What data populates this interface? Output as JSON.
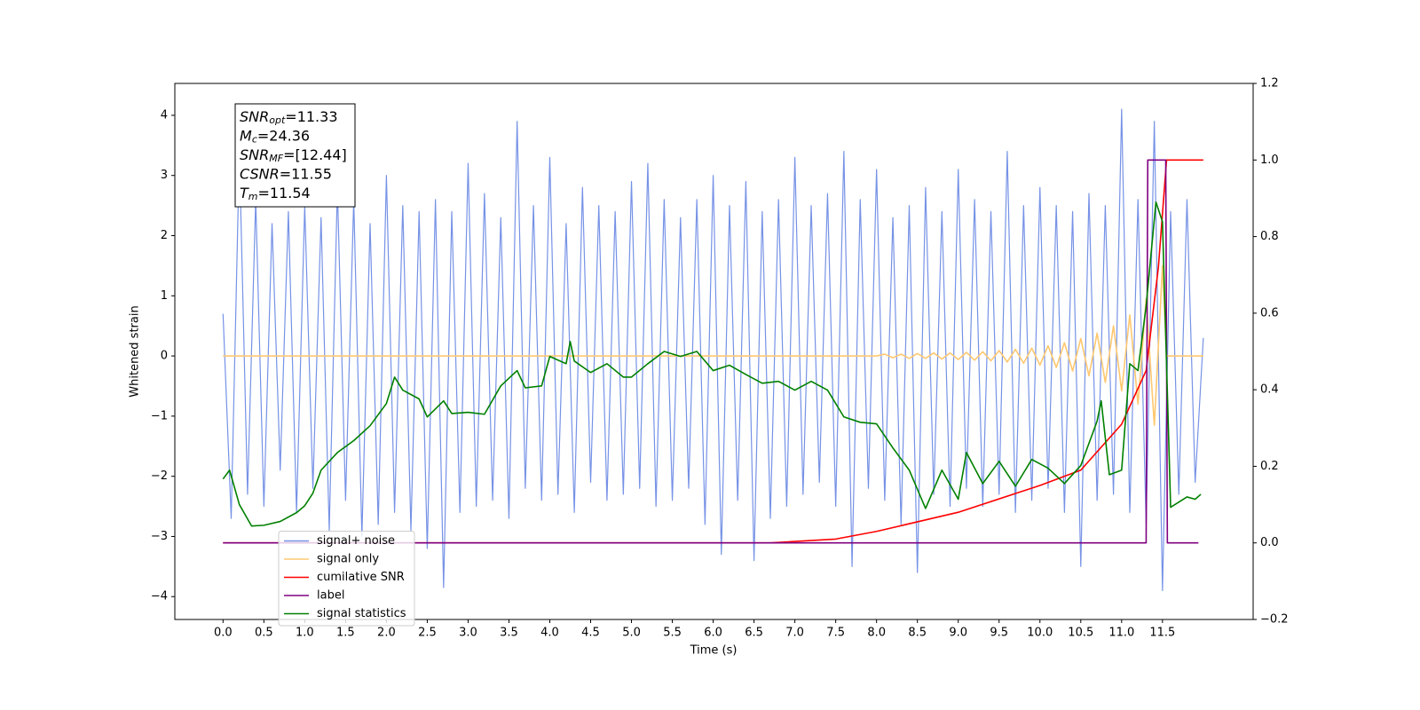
{
  "chart_data": {
    "type": "line",
    "xlabel": "Time (s)",
    "ylabel": "Whitened strain",
    "xlim": [
      -0.59,
      12.61
    ],
    "ylim": [
      -4.38,
      4.53
    ],
    "y2lim": [
      -0.2,
      1.2
    ],
    "xticks": [
      {
        "value": 0,
        "label": "0.0"
      },
      0.5,
      {
        "value": 1,
        "label": "1.0"
      },
      1.5,
      {
        "value": 2,
        "label": "2.0"
      },
      2.5,
      {
        "value": 3,
        "label": "3.0"
      },
      3.5,
      {
        "value": 4,
        "label": "4.0"
      },
      4.5,
      {
        "value": 5,
        "label": "5.0"
      },
      5.5,
      {
        "value": 6,
        "label": "6.0"
      },
      6.5,
      {
        "value": 7,
        "label": "7.0"
      },
      7.5,
      {
        "value": 8,
        "label": "8.0"
      },
      8.5,
      {
        "value": 9,
        "label": "9.0"
      },
      9.5,
      {
        "value": 10,
        "label": "10.0"
      },
      10.5,
      {
        "value": 11,
        "label": "11.0"
      },
      11.5
    ],
    "yticks": [
      {
        "value": -4,
        "label": "−4"
      },
      {
        "value": -3,
        "label": "−3"
      },
      {
        "value": -2,
        "label": "−2"
      },
      {
        "value": -1,
        "label": "−1"
      },
      0,
      1,
      2,
      3,
      4
    ],
    "y2ticks": [
      {
        "value": -0.2,
        "label": "−0.2"
      },
      {
        "value": 0,
        "label": "0.0"
      },
      0.2,
      0.4,
      0.6,
      0.8,
      {
        "value": 1,
        "label": "1.0"
      },
      1.2
    ],
    "legend_loc": "lower left",
    "annotations": [
      {
        "base": "SNR",
        "sub": "opt",
        "text": "=11.33"
      },
      {
        "base": "M",
        "sub": "c",
        "text": "=24.36"
      },
      {
        "base": "SNR",
        "sub": "MF",
        "text": "=[12.44]"
      },
      {
        "base": "CSNR",
        "text": "=11.55"
      },
      {
        "base": "T",
        "sub": "m",
        "text": "=11.54"
      }
    ],
    "series": [
      {
        "name": "signal+ noise",
        "color": "#7692e6",
        "axis": "y",
        "x": [
          0.0,
          0.1,
          0.2,
          0.3,
          0.4,
          0.5,
          0.6,
          0.7,
          0.8,
          0.9,
          1.0,
          1.1,
          1.2,
          1.3,
          1.4,
          1.5,
          1.6,
          1.7,
          1.8,
          1.9,
          2.0,
          2.1,
          2.2,
          2.3,
          2.4,
          2.5,
          2.6,
          2.7,
          2.8,
          2.9,
          3.0,
          3.1,
          3.2,
          3.3,
          3.4,
          3.5,
          3.6,
          3.7,
          3.8,
          3.9,
          4.0,
          4.1,
          4.2,
          4.3,
          4.4,
          4.5,
          4.6,
          4.7,
          4.8,
          4.9,
          5.0,
          5.1,
          5.2,
          5.3,
          5.4,
          5.5,
          5.6,
          5.7,
          5.8,
          5.9,
          6.0,
          6.1,
          6.2,
          6.3,
          6.4,
          6.5,
          6.6,
          6.7,
          6.8,
          6.9,
          7.0,
          7.1,
          7.2,
          7.3,
          7.4,
          7.5,
          7.6,
          7.7,
          7.8,
          7.9,
          8.0,
          8.1,
          8.2,
          8.3,
          8.4,
          8.5,
          8.6,
          8.7,
          8.8,
          8.9,
          9.0,
          9.1,
          9.2,
          9.3,
          9.4,
          9.5,
          9.6,
          9.7,
          9.8,
          9.9,
          10.0,
          10.1,
          10.2,
          10.3,
          10.4,
          10.5,
          10.6,
          10.7,
          10.8,
          10.9,
          11.0,
          11.1,
          11.2,
          11.3,
          11.4,
          11.5,
          11.6,
          11.7,
          11.8,
          11.9,
          12.0
        ],
        "values": [
          0.7,
          -2.7,
          3.4,
          -2.3,
          2.6,
          -2.5,
          2.2,
          -1.9,
          2.4,
          -2.6,
          2.5,
          -2.2,
          2.3,
          -2.9,
          2.8,
          -2.4,
          2.6,
          -3.0,
          2.2,
          -2.8,
          3.0,
          -2.6,
          2.5,
          -2.9,
          2.4,
          -3.2,
          2.6,
          -3.85,
          2.4,
          -2.6,
          3.2,
          -2.5,
          2.7,
          -2.4,
          2.3,
          -2.7,
          3.9,
          -2.2,
          2.5,
          -2.4,
          3.3,
          -2.3,
          2.2,
          -2.6,
          2.8,
          -2.1,
          2.5,
          -2.4,
          2.4,
          -2.3,
          2.9,
          -2.2,
          3.2,
          -2.5,
          2.6,
          -2.4,
          2.3,
          -2.2,
          2.6,
          -2.8,
          3.0,
          -3.3,
          2.5,
          -2.4,
          2.9,
          -3.4,
          2.4,
          -2.7,
          2.6,
          -2.5,
          3.3,
          -2.3,
          2.5,
          -2.1,
          2.7,
          -2.5,
          3.4,
          -3.5,
          2.6,
          -2.2,
          3.1,
          -2.4,
          2.3,
          -2.8,
          2.5,
          -3.6,
          2.8,
          -2.3,
          2.4,
          -2.5,
          3.1,
          -2.2,
          2.6,
          -2.5,
          2.4,
          -2.3,
          3.4,
          -2.6,
          2.5,
          -2.4,
          2.8,
          -2.2,
          2.5,
          -2.6,
          2.4,
          -3.5,
          2.7,
          -2.4,
          2.5,
          -2.3,
          4.1,
          -2.6,
          2.6,
          -2.8,
          3.9,
          -3.9,
          2.4,
          -2.3,
          2.6,
          -2.1,
          0.3
        ]
      },
      {
        "name": "signal only",
        "color": "#ffc870",
        "axis": "y",
        "x": [
          0,
          8.0,
          8.1,
          8.2,
          8.3,
          8.4,
          8.5,
          8.6,
          8.7,
          8.8,
          8.9,
          9.0,
          9.1,
          9.2,
          9.3,
          9.4,
          9.5,
          9.6,
          9.7,
          9.8,
          9.9,
          10.0,
          10.1,
          10.2,
          10.3,
          10.4,
          10.5,
          10.6,
          10.7,
          10.8,
          10.9,
          11.0,
          11.1,
          11.2,
          11.3,
          11.4,
          11.5,
          11.55,
          12.0
        ],
        "values": [
          0,
          0,
          0.03,
          -0.03,
          0.03,
          -0.04,
          0.04,
          -0.04,
          0.05,
          -0.05,
          0.05,
          -0.06,
          0.06,
          -0.07,
          0.07,
          -0.08,
          0.09,
          -0.1,
          0.11,
          -0.12,
          0.13,
          -0.15,
          0.17,
          -0.19,
          0.22,
          -0.25,
          0.29,
          -0.33,
          0.38,
          -0.44,
          0.5,
          -0.58,
          0.68,
          -0.8,
          0.95,
          -1.15,
          1.5,
          0,
          0
        ]
      },
      {
        "name": "cumilative SNR",
        "color": "#ff0000",
        "axis": "y2",
        "x": [
          0,
          6.7,
          7.5,
          8.0,
          9.0,
          10.0,
          10.5,
          11.0,
          11.3,
          11.45,
          11.55,
          12.0
        ],
        "values": [
          0,
          0,
          0.01,
          0.03,
          0.08,
          0.15,
          0.19,
          0.31,
          0.45,
          0.72,
          1.0,
          1.0
        ]
      },
      {
        "name": "label",
        "color": "#800080",
        "axis": "y2",
        "x": [
          0,
          11.3,
          11.32,
          11.54,
          11.56,
          11.94
        ],
        "values": [
          0,
          0,
          1,
          1,
          0,
          0
        ]
      },
      {
        "name": "signal statistics",
        "color": "#008000",
        "axis": "y2",
        "x": [
          0.0,
          0.08,
          0.2,
          0.35,
          0.5,
          0.7,
          0.9,
          1.0,
          1.1,
          1.2,
          1.4,
          1.6,
          1.8,
          2.0,
          2.1,
          2.2,
          2.4,
          2.5,
          2.7,
          2.8,
          3.0,
          3.2,
          3.4,
          3.6,
          3.7,
          3.9,
          4.0,
          4.2,
          4.25,
          4.3,
          4.5,
          4.7,
          4.9,
          5.0,
          5.2,
          5.4,
          5.6,
          5.8,
          6.0,
          6.2,
          6.4,
          6.6,
          6.8,
          7.0,
          7.2,
          7.4,
          7.6,
          7.8,
          8.0,
          8.2,
          8.4,
          8.6,
          8.8,
          9.0,
          9.1,
          9.3,
          9.5,
          9.7,
          9.9,
          10.1,
          10.3,
          10.5,
          10.7,
          10.75,
          10.85,
          11.0,
          11.1,
          11.2,
          11.3,
          11.42,
          11.5,
          11.6,
          11.8,
          11.9,
          11.97
        ],
        "values": [
          0.167,
          0.19,
          0.1,
          0.044,
          0.046,
          0.056,
          0.079,
          0.097,
          0.13,
          0.19,
          0.236,
          0.267,
          0.306,
          0.364,
          0.433,
          0.399,
          0.376,
          0.329,
          0.371,
          0.338,
          0.341,
          0.336,
          0.41,
          0.45,
          0.405,
          0.41,
          0.487,
          0.468,
          0.526,
          0.475,
          0.445,
          0.468,
          0.433,
          0.433,
          0.468,
          0.5,
          0.487,
          0.5,
          0.45,
          0.464,
          0.44,
          0.417,
          0.422,
          0.399,
          0.422,
          0.399,
          0.329,
          0.315,
          0.311,
          0.248,
          0.19,
          0.09,
          0.19,
          0.114,
          0.236,
          0.155,
          0.213,
          0.148,
          0.218,
          0.195,
          0.155,
          0.202,
          0.318,
          0.371,
          0.178,
          0.19,
          0.468,
          0.45,
          0.619,
          0.89,
          0.839,
          0.093,
          0.12,
          0.114,
          0.127
        ]
      }
    ]
  }
}
